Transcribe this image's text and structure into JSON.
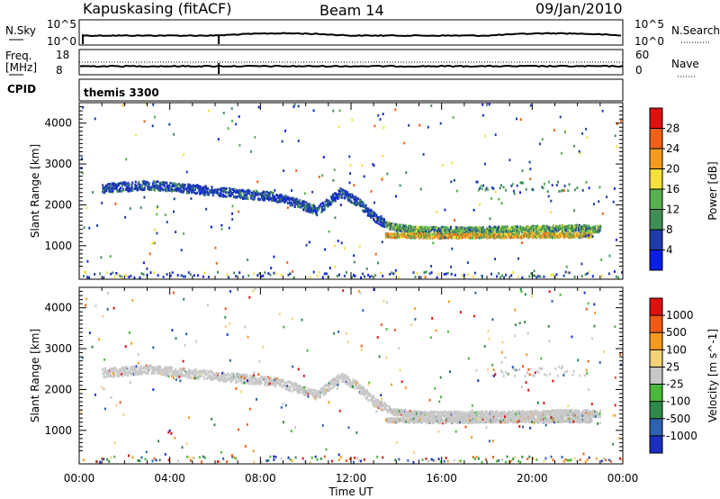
{
  "header": {
    "station": "Kapuskasing (fitACF)",
    "beam": "Beam 14",
    "date": "09/Jan/2010"
  },
  "top_panels": {
    "nsky_label": "N.Sky",
    "nsky_ticks": [
      "10^5",
      "10^0"
    ],
    "nsearch_label": "N.Search",
    "nsearch_ticks": [
      "10^5",
      "10^0"
    ],
    "freq_label": "Freq.",
    "freq_unit": "[MHz]",
    "freq_ticks": [
      "18",
      "8"
    ],
    "nave_label": "Nave",
    "nave_ticks": [
      "60",
      "0"
    ],
    "cpid_label": "CPID",
    "cpid_value": "themis 3300"
  },
  "chart_data": [
    {
      "type": "heatmap",
      "parameter": "Power",
      "ylabel": "Slant Range [km]",
      "ylim": [
        180,
        4500
      ],
      "yticks": [
        "1000",
        "2000",
        "3000",
        "4000"
      ],
      "xlabel": "Time UT",
      "xlim_hours": [
        0,
        24
      ],
      "xticks": [
        "00:00",
        "04:00",
        "08:00",
        "12:00",
        "16:00",
        "20:00",
        "00:00"
      ],
      "colorbar_label": "Power [dB]",
      "colorbar_ticks": [
        "4",
        "8",
        "12",
        "16",
        "20",
        "24",
        "28"
      ],
      "colorbar_colors": [
        "#0a1ee6",
        "#1d3ca8",
        "#3f8f55",
        "#55b04f",
        "#f5e03c",
        "#f59a1e",
        "#f06018",
        "#e01010"
      ],
      "features": {
        "main_band_range_km": [
          [
            1.0,
            2400
          ],
          [
            3.0,
            2480
          ],
          [
            5.0,
            2380
          ],
          [
            7.0,
            2270
          ],
          [
            8.5,
            2200
          ],
          [
            9.5,
            2050
          ],
          [
            10.5,
            1850
          ],
          [
            11.5,
            2300
          ],
          [
            12.2,
            2100
          ],
          [
            13.0,
            1700
          ],
          [
            13.8,
            1450
          ],
          [
            15.0,
            1380
          ],
          [
            18.0,
            1380
          ],
          [
            20.0,
            1400
          ],
          [
            22.0,
            1420
          ],
          [
            23.0,
            1400
          ]
        ],
        "secondary_band_range_km": [
          [
            13.5,
            1250
          ],
          [
            16.0,
            1230
          ],
          [
            20.0,
            1250
          ],
          [
            22.5,
            1250
          ]
        ],
        "near_range_km": 260
      }
    },
    {
      "type": "heatmap",
      "parameter": "Velocity",
      "ylabel": "Slant Range [km]",
      "ylim": [
        180,
        4500
      ],
      "yticks": [
        "1000",
        "2000",
        "3000",
        "4000"
      ],
      "xlabel": "Time UT",
      "xlim_hours": [
        0,
        24
      ],
      "xticks": [
        "00:00",
        "04:00",
        "08:00",
        "12:00",
        "16:00",
        "20:00",
        "00:00"
      ],
      "colorbar_label": "Velocity [m s^-1]",
      "colorbar_ticks": [
        "1000",
        "500",
        "100",
        "25",
        "-25",
        "-100",
        "-500",
        "-1000"
      ],
      "colorbar_colors": [
        "#1a2fbf",
        "#2d62b0",
        "#2f8a4a",
        "#4ab83a",
        "#c8c8c8",
        "#f5d27a",
        "#f59a1e",
        "#f05a14",
        "#e01010"
      ],
      "features": {
        "ground_scatter_color": "#c8c8c8"
      }
    }
  ]
}
